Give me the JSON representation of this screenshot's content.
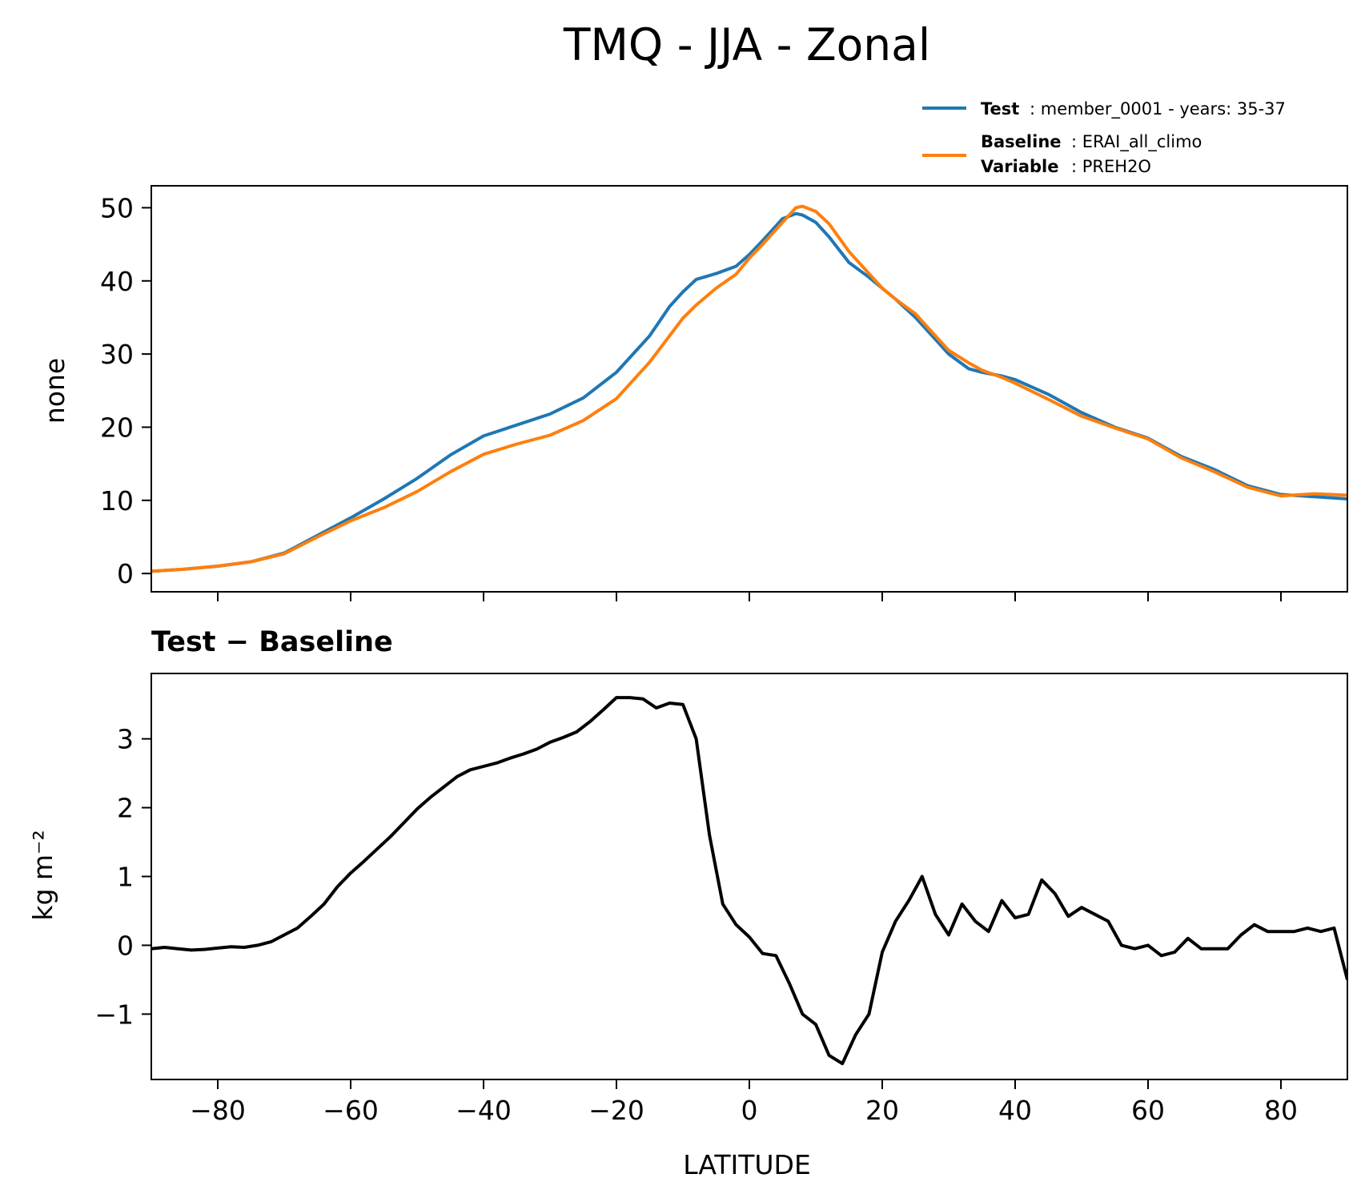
{
  "title": "TMQ - JJA - Zonal",
  "legend": {
    "test_key": "Test",
    "test_value": ": member_0001 - years: 35-37",
    "baseline_key": "Baseline",
    "baseline_value": ": ERAI_all_climo",
    "variable_key": "Variable",
    "variable_value": ": PREH2O"
  },
  "colors": {
    "test": "#1f77b4",
    "baseline": "#ff7f0e",
    "diff": "#000000"
  },
  "chart_data": [
    {
      "type": "line",
      "title": "",
      "xlabel": "",
      "ylabel": "none",
      "xlim": [
        -90,
        90
      ],
      "ylim": [
        -2.5,
        53
      ],
      "xticks": [
        -80,
        -60,
        -40,
        -20,
        0,
        20,
        40,
        60,
        80
      ],
      "yticks": [
        0,
        10,
        20,
        30,
        40,
        50
      ],
      "ytick_labels": [
        "0",
        "10",
        "20",
        "30",
        "40",
        "50"
      ],
      "show_xtick_labels": false,
      "series": [
        {
          "name": "Test",
          "color": "#1f77b4",
          "x": [
            -90,
            -85,
            -80,
            -75,
            -70,
            -65,
            -60,
            -55,
            -50,
            -45,
            -40,
            -35,
            -30,
            -25,
            -20,
            -15,
            -12,
            -10,
            -8,
            -5,
            -2,
            0,
            2,
            5,
            7,
            8,
            10,
            12,
            15,
            18,
            20,
            22,
            25,
            28,
            30,
            33,
            35,
            38,
            40,
            45,
            50,
            55,
            60,
            65,
            70,
            75,
            80,
            85,
            90
          ],
          "values": [
            0.3,
            0.6,
            1.0,
            1.6,
            2.8,
            5.2,
            7.6,
            10.2,
            13.0,
            16.2,
            18.8,
            20.3,
            21.8,
            24.0,
            27.5,
            32.5,
            36.5,
            38.5,
            40.2,
            41.0,
            42.0,
            43.6,
            45.5,
            48.5,
            49.2,
            49.0,
            48.0,
            46.0,
            42.5,
            40.5,
            39.0,
            37.5,
            35.0,
            32.0,
            30.0,
            28.0,
            27.5,
            27.0,
            26.5,
            24.5,
            22.0,
            20.0,
            18.5,
            16.0,
            14.2,
            12.0,
            10.8,
            10.5,
            10.2
          ]
        },
        {
          "name": "Baseline",
          "color": "#ff7f0e",
          "x": [
            -90,
            -85,
            -80,
            -75,
            -70,
            -65,
            -60,
            -55,
            -50,
            -45,
            -40,
            -35,
            -30,
            -25,
            -20,
            -15,
            -12,
            -10,
            -8,
            -5,
            -2,
            0,
            2,
            5,
            7,
            8,
            10,
            12,
            15,
            18,
            20,
            22,
            25,
            28,
            30,
            33,
            35,
            38,
            40,
            45,
            50,
            55,
            60,
            65,
            70,
            75,
            80,
            85,
            90
          ],
          "values": [
            0.3,
            0.6,
            1.0,
            1.6,
            2.7,
            5.0,
            7.2,
            9.0,
            11.2,
            13.9,
            16.3,
            17.7,
            18.9,
            20.9,
            23.9,
            28.9,
            32.5,
            34.9,
            36.7,
            39.0,
            40.9,
            43.1,
            45.0,
            48.0,
            50.0,
            50.2,
            49.5,
            47.8,
            44.0,
            41.0,
            39.0,
            37.5,
            35.5,
            32.5,
            30.5,
            28.8,
            27.8,
            26.8,
            26.0,
            23.8,
            21.5,
            19.9,
            18.4,
            15.8,
            13.9,
            11.8,
            10.6,
            10.9,
            10.7
          ]
        }
      ]
    },
    {
      "type": "line",
      "title": "Test − Baseline",
      "xlabel": "LATITUDE",
      "ylabel": "kg m⁻²",
      "xlim": [
        -90,
        90
      ],
      "ylim": [
        -1.95,
        3.95
      ],
      "xticks": [
        -80,
        -60,
        -40,
        -20,
        0,
        20,
        40,
        60,
        80
      ],
      "xtick_labels": [
        "−80",
        "−60",
        "−40",
        "−20",
        "0",
        "20",
        "40",
        "60",
        "80"
      ],
      "yticks": [
        -1,
        0,
        1,
        2,
        3
      ],
      "ytick_labels": [
        "−1",
        "0",
        "1",
        "2",
        "3"
      ],
      "show_xtick_labels": true,
      "series": [
        {
          "name": "Test − Baseline",
          "color": "#000000",
          "x": [
            -90,
            -88,
            -86,
            -84,
            -82,
            -80,
            -78,
            -76,
            -74,
            -72,
            -70,
            -68,
            -66,
            -64,
            -62,
            -60,
            -58,
            -56,
            -54,
            -52,
            -50,
            -48,
            -46,
            -44,
            -42,
            -40,
            -38,
            -36,
            -34,
            -32,
            -30,
            -28,
            -26,
            -24,
            -22,
            -20,
            -18,
            -16,
            -14,
            -12,
            -10,
            -8,
            -6,
            -4,
            -2,
            0,
            2,
            4,
            6,
            8,
            10,
            12,
            14,
            16,
            18,
            20,
            22,
            24,
            26,
            28,
            30,
            32,
            34,
            36,
            38,
            40,
            42,
            44,
            46,
            48,
            50,
            52,
            54,
            56,
            58,
            60,
            62,
            64,
            66,
            68,
            70,
            72,
            74,
            76,
            78,
            80,
            82,
            84,
            86,
            88,
            90
          ],
          "values": [
            -0.05,
            -0.03,
            -0.05,
            -0.07,
            -0.06,
            -0.04,
            -0.02,
            -0.03,
            0.0,
            0.05,
            0.15,
            0.25,
            0.42,
            0.6,
            0.85,
            1.05,
            1.22,
            1.4,
            1.58,
            1.78,
            1.98,
            2.15,
            2.3,
            2.45,
            2.55,
            2.6,
            2.65,
            2.72,
            2.78,
            2.85,
            2.95,
            3.02,
            3.1,
            3.25,
            3.42,
            3.6,
            3.6,
            3.58,
            3.45,
            3.52,
            3.5,
            3.0,
            1.6,
            0.6,
            0.3,
            0.12,
            -0.12,
            -0.15,
            -0.55,
            -1.0,
            -1.15,
            -1.6,
            -1.72,
            -1.3,
            -1.0,
            -0.1,
            0.35,
            0.65,
            1.0,
            0.45,
            0.15,
            0.6,
            0.35,
            0.2,
            0.65,
            0.4,
            0.45,
            0.95,
            0.75,
            0.42,
            0.55,
            0.45,
            0.35,
            0.0,
            -0.05,
            0.0,
            -0.15,
            -0.1,
            0.1,
            -0.05,
            -0.05,
            -0.05,
            0.15,
            0.3,
            0.2,
            0.2,
            0.2,
            0.25,
            0.2,
            0.25,
            -0.5
          ]
        }
      ]
    }
  ]
}
